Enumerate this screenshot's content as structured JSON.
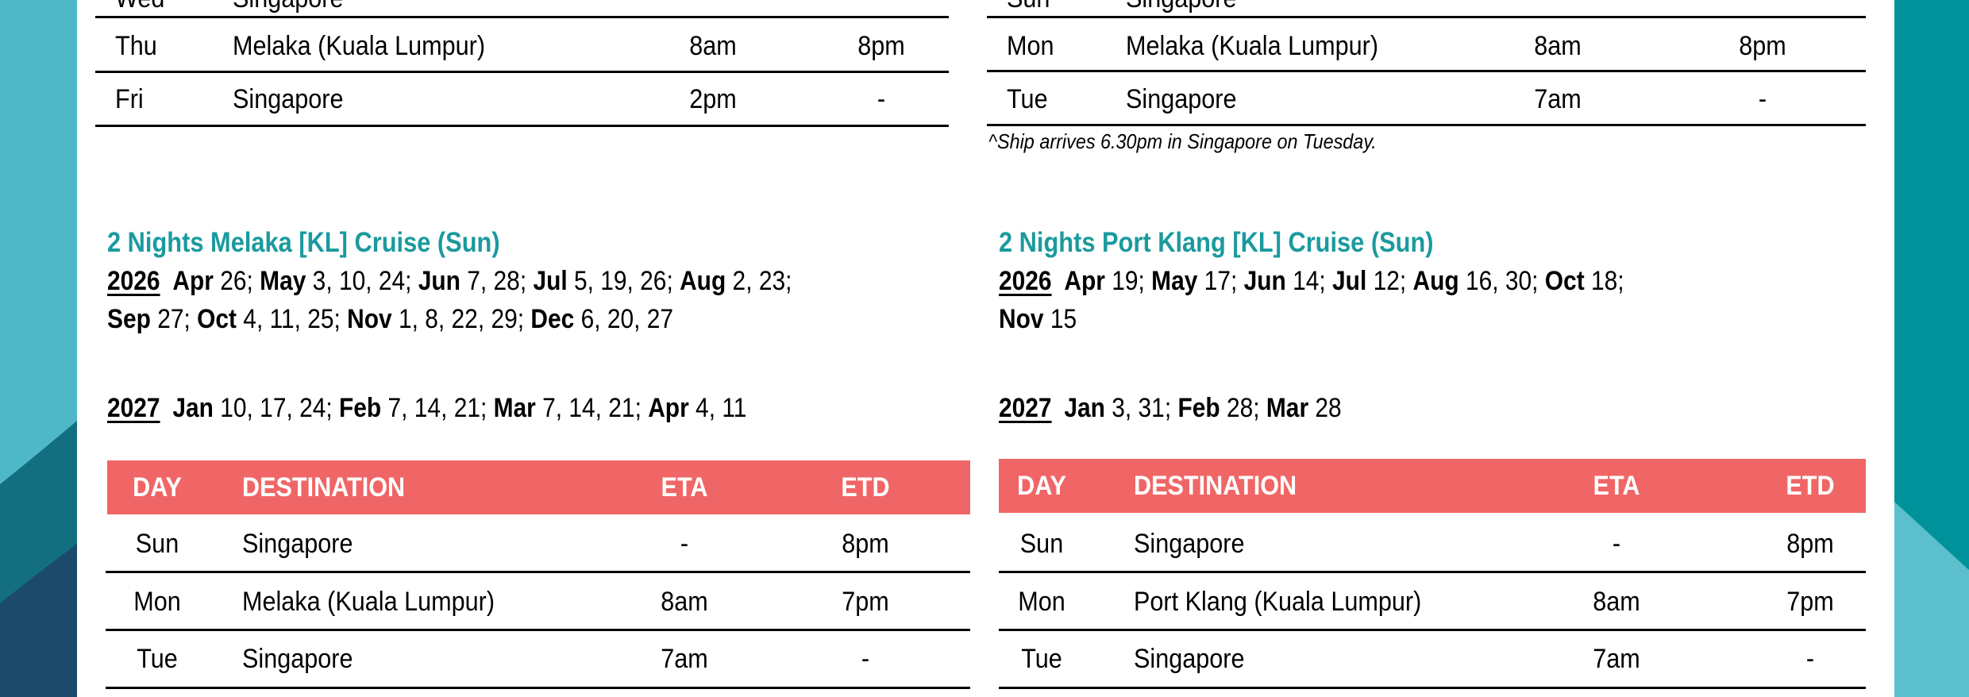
{
  "colors": {
    "accent_heading": "#1a9a9e",
    "table_header": "#f06666",
    "left_band_light": "#4fb8c8",
    "left_band_dark": "#1b4a6b",
    "right_band_dark": "#00929a",
    "right_band_light": "#5cbfcc"
  },
  "top_left_table": {
    "rows": [
      {
        "day": "Wed",
        "destination": "Singapore",
        "eta": "",
        "etd": ""
      },
      {
        "day": "Thu",
        "destination": "Melaka (Kuala Lumpur)",
        "eta": "8am",
        "etd": "8pm"
      },
      {
        "day": "Fri",
        "destination": "Singapore",
        "eta": "2pm",
        "etd": "-"
      }
    ]
  },
  "top_right_table": {
    "rows": [
      {
        "day": "Sun",
        "destination": "Singapore",
        "eta": "",
        "etd": ""
      },
      {
        "day": "Mon",
        "destination": "Melaka (Kuala Lumpur)",
        "eta": "8am",
        "etd": "8pm"
      },
      {
        "day": "Tue",
        "destination": "Singapore",
        "eta": "7am",
        "etd": "-"
      }
    ],
    "footnote": "^Ship arrives 6.30pm in Singapore on Tuesday."
  },
  "melaka_cruise": {
    "title": "2 Nights Melaka [KL] Cruise (Sun)",
    "year_2026": "2026",
    "dates_2026": [
      {
        "m": "Apr",
        "d": " 26; "
      },
      {
        "m": "May",
        "d": " 3, 10, 24; "
      },
      {
        "m": "Jun",
        "d": " 7, 28; "
      },
      {
        "m": "Jul",
        "d": " 5, 19, 26; "
      },
      {
        "m": "Aug",
        "d": " 2, 23;"
      },
      {
        "m": "Sep",
        "d": " 27; "
      },
      {
        "m": "Oct",
        "d": " 4, 11, 25; "
      },
      {
        "m": "Nov",
        "d": " 1, 8, 22, 29; "
      },
      {
        "m": "Dec",
        "d": " 6, 20, 27"
      }
    ],
    "year_2027": "2027",
    "dates_2027": [
      {
        "m": "Jan",
        "d": " 10, 17, 24; "
      },
      {
        "m": "Feb",
        "d": " 7, 14, 21; "
      },
      {
        "m": "Mar",
        "d": " 7, 14, 21; "
      },
      {
        "m": "Apr",
        "d": " 4, 11"
      }
    ],
    "table": {
      "headers": [
        "DAY",
        "DESTINATION",
        "ETA",
        "ETD"
      ],
      "rows": [
        {
          "day": "Sun",
          "destination": "Singapore",
          "eta": "-",
          "etd": "8pm"
        },
        {
          "day": "Mon",
          "destination": "Melaka (Kuala Lumpur)",
          "eta": "8am",
          "etd": "7pm"
        },
        {
          "day": "Tue",
          "destination": "Singapore",
          "eta": "7am",
          "etd": "-"
        }
      ]
    }
  },
  "port_klang_cruise": {
    "title": "2 Nights Port Klang [KL] Cruise (Sun)",
    "year_2026": "2026",
    "dates_2026": [
      {
        "m": "Apr",
        "d": " 19; "
      },
      {
        "m": "May",
        "d": " 17; "
      },
      {
        "m": "Jun",
        "d": " 14; "
      },
      {
        "m": "Jul",
        "d": " 12; "
      },
      {
        "m": "Aug",
        "d": " 16, 30; "
      },
      {
        "m": "Oct",
        "d": " 18;"
      },
      {
        "m": "Nov",
        "d": " 15"
      }
    ],
    "year_2027": "2027",
    "dates_2027": [
      {
        "m": "Jan",
        "d": " 3, 31; "
      },
      {
        "m": "Feb",
        "d": " 28; "
      },
      {
        "m": "Mar",
        "d": " 28"
      }
    ],
    "table": {
      "headers": [
        "DAY",
        "DESTINATION",
        "ETA",
        "ETD"
      ],
      "rows": [
        {
          "day": "Sun",
          "destination": "Singapore",
          "eta": "-",
          "etd": "8pm"
        },
        {
          "day": "Mon",
          "destination": "Port Klang (Kuala Lumpur)",
          "eta": "8am",
          "etd": "7pm"
        },
        {
          "day": "Tue",
          "destination": "Singapore",
          "eta": "7am",
          "etd": "-"
        }
      ]
    }
  }
}
